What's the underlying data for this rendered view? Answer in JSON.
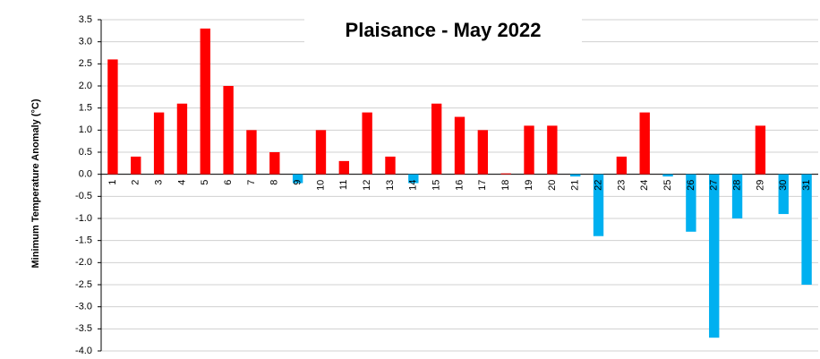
{
  "chart_data": {
    "type": "bar",
    "title": "Plaisance - May 2022",
    "y_label": "Minimum Temperature Anomaly (°C)",
    "categories": [
      "1",
      "2",
      "3",
      "4",
      "5",
      "6",
      "7",
      "8",
      "9",
      "10",
      "11",
      "12",
      "13",
      "14",
      "15",
      "16",
      "17",
      "18",
      "19",
      "20",
      "21",
      "22",
      "23",
      "24",
      "25",
      "26",
      "27",
      "28",
      "29",
      "30",
      "31"
    ],
    "values": [
      2.6,
      0.4,
      1.4,
      1.6,
      3.3,
      2.0,
      1.0,
      0.5,
      -0.2,
      1.0,
      0.3,
      1.4,
      0.4,
      -0.2,
      1.6,
      1.3,
      1.0,
      0.02,
      1.1,
      1.1,
      -0.05,
      -1.4,
      0.4,
      1.4,
      -0.05,
      -1.3,
      -3.7,
      -1.0,
      1.1,
      -0.9,
      -2.5
    ],
    "positive_color": "#ff0000",
    "negative_color": "#00b0f0",
    "ylim": [
      -4,
      3.5
    ],
    "yticks": [
      {
        "value": -4,
        "label": "-4.0"
      },
      -3.5,
      {
        "value": -3,
        "label": "-3.0"
      },
      -2.5,
      {
        "value": -2,
        "label": "-2.0"
      },
      -1.5,
      {
        "value": -1,
        "label": "-1.0"
      },
      -0.5,
      {
        "value": 0,
        "label": "0.0"
      },
      0.5,
      {
        "value": 1,
        "label": "1.0"
      },
      1.5,
      {
        "value": 2,
        "label": "2.0"
      },
      2.5,
      {
        "value": 3,
        "label": "3.0"
      },
      3.5
    ],
    "grid": true
  }
}
